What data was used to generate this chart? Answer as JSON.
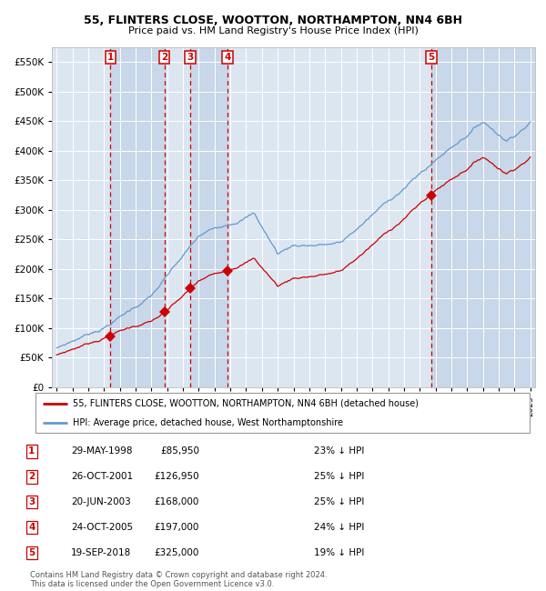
{
  "title1": "55, FLINTERS CLOSE, WOOTTON, NORTHAMPTON, NN4 6BH",
  "title2": "Price paid vs. HM Land Registry's House Price Index (HPI)",
  "background_color": "#ffffff",
  "plot_bg_color": "#dce6f1",
  "grid_color": "#ffffff",
  "sale_dates_num": [
    1998.41,
    2001.82,
    2003.47,
    2005.82,
    2018.72
  ],
  "sale_prices": [
    85950,
    126950,
    168000,
    197000,
    325000
  ],
  "sale_labels": [
    "1",
    "2",
    "3",
    "4",
    "5"
  ],
  "legend_line1": "55, FLINTERS CLOSE, WOOTTON, NORTHAMPTON, NN4 6BH (detached house)",
  "legend_line2": "HPI: Average price, detached house, West Northamptonshire",
  "table_rows": [
    [
      "1",
      "29-MAY-1998",
      "£85,950",
      "23% ↓ HPI"
    ],
    [
      "2",
      "26-OCT-2001",
      "£126,950",
      "25% ↓ HPI"
    ],
    [
      "3",
      "20-JUN-2003",
      "£168,000",
      "25% ↓ HPI"
    ],
    [
      "4",
      "24-OCT-2005",
      "£197,000",
      "24% ↓ HPI"
    ],
    [
      "5",
      "19-SEP-2018",
      "£325,000",
      "19% ↓ HPI"
    ]
  ],
  "footer": "Contains HM Land Registry data © Crown copyright and database right 2024.\nThis data is licensed under the Open Government Licence v3.0.",
  "red_color": "#cc0000",
  "blue_color": "#6699cc",
  "shade_color": "#c5d5e8",
  "dashed_color": "#cc0000",
  "ylim": [
    0,
    575000
  ],
  "yticks": [
    0,
    50000,
    100000,
    150000,
    200000,
    250000,
    300000,
    350000,
    400000,
    450000,
    500000,
    550000
  ],
  "xlim_start": 1994.7,
  "xlim_end": 2025.3
}
